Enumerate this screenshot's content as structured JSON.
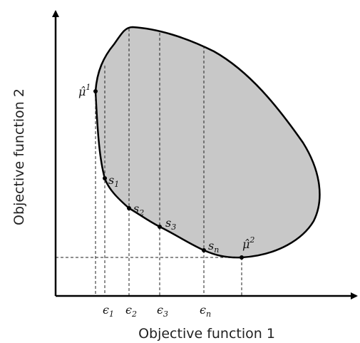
{
  "axes": {
    "x_label": "Objective function 1",
    "y_label": "Objective function 2"
  },
  "points": [
    {
      "symbol": "μ̂",
      "index": "1"
    },
    {
      "symbol": "s",
      "index": "1"
    },
    {
      "symbol": "s",
      "index": "2"
    },
    {
      "symbol": "s",
      "index": "3"
    },
    {
      "symbol": "s",
      "index": "n"
    },
    {
      "symbol": "μ̂",
      "index": "2"
    }
  ],
  "epsilons": [
    {
      "symbol": "ϵ",
      "index": "1"
    },
    {
      "symbol": "ϵ",
      "index": "2"
    },
    {
      "symbol": "ϵ",
      "index": "3"
    },
    {
      "symbol": "ϵ",
      "index": "n"
    }
  ]
}
